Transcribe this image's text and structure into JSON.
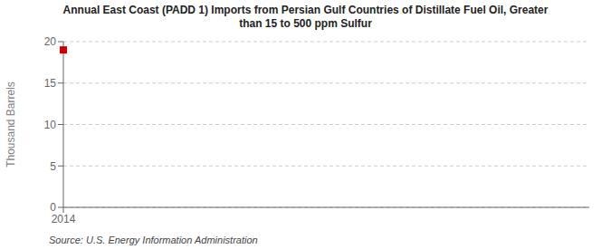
{
  "chart_data": {
    "type": "scatter",
    "title": "Annual East Coast (PADD 1) Imports from Persian Gulf Countries of Distillate Fuel Oil, Greater\nthan 15 to 500 ppm Sulfur",
    "ylabel": "Thousand Barrels",
    "annotation": "Source: U.S. Energy Information Administration",
    "x": [
      2014
    ],
    "values": [
      19
    ],
    "color": "#cc0000",
    "marker": "square",
    "xlim": [
      2014,
      2023
    ],
    "xticks": [
      2014
    ],
    "ylim": [
      0,
      20
    ],
    "yticks": [
      0,
      5,
      10,
      15,
      20
    ],
    "grid": true
  }
}
